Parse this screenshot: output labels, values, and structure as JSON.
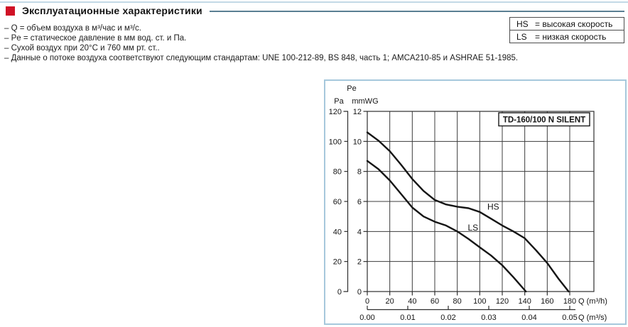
{
  "header": {
    "title": "Эксплуатационные характеристики",
    "accent_color": "#d01226",
    "rule_color": "#5a7f92"
  },
  "notes": [
    "– Q = объем воздуха в м³/час и м³/с.",
    "– Pe = статическое давление в мм вод. ст. и Па.",
    "– Сухой воздух при 20°C и 760 мм рт. ст..",
    "– Данные о потоке воздуха соответствуют следующим стандартам: UNE 100-212-89, BS 848, часть 1; AMCA210-85 и ASHRAE 51-1985."
  ],
  "legend": {
    "rows": [
      {
        "code": "HS",
        "text": "= высокая скорость"
      },
      {
        "code": "LS",
        "text": "= низкая скорость"
      }
    ]
  },
  "chart_data": {
    "type": "line",
    "title": "TD-160/100 N SILENT",
    "x_axis_primary": {
      "title": "Q (m³/h)",
      "ticks": [
        0,
        20,
        40,
        60,
        80,
        100,
        120,
        140,
        160,
        180
      ],
      "range": [
        0,
        201
      ]
    },
    "x_axis_secondary": {
      "title": "Q (m³/s)",
      "ticks": [
        "0.00",
        "0.01",
        "0.02",
        "0.03",
        "0.04",
        "0.05"
      ]
    },
    "y_axis_pa": {
      "title": "Pa",
      "ticks": [
        120,
        100,
        80,
        60,
        40,
        20,
        0
      ]
    },
    "y_axis_mmwg": {
      "title": "mmWG",
      "super_title": "Pe",
      "ticks": [
        12,
        10,
        8,
        6,
        4,
        2,
        0
      ],
      "range": [
        0,
        12
      ]
    },
    "grid": true,
    "series": [
      {
        "name": "HS",
        "points": [
          [
            0,
            10.6
          ],
          [
            10,
            10.05
          ],
          [
            20,
            9.35
          ],
          [
            30,
            8.45
          ],
          [
            40,
            7.5
          ],
          [
            50,
            6.7
          ],
          [
            60,
            6.1
          ],
          [
            70,
            5.8
          ],
          [
            80,
            5.65
          ],
          [
            90,
            5.55
          ],
          [
            100,
            5.3
          ],
          [
            110,
            4.85
          ],
          [
            120,
            4.4
          ],
          [
            130,
            4.0
          ],
          [
            140,
            3.55
          ],
          [
            150,
            2.75
          ],
          [
            160,
            1.9
          ],
          [
            170,
            0.85
          ],
          [
            179,
            0
          ]
        ],
        "label_at": [
          112,
          5.45
        ]
      },
      {
        "name": "LS",
        "points": [
          [
            0,
            8.7
          ],
          [
            10,
            8.15
          ],
          [
            20,
            7.4
          ],
          [
            30,
            6.5
          ],
          [
            40,
            5.6
          ],
          [
            50,
            5.0
          ],
          [
            60,
            4.65
          ],
          [
            70,
            4.4
          ],
          [
            80,
            4.0
          ],
          [
            90,
            3.5
          ],
          [
            100,
            2.95
          ],
          [
            110,
            2.4
          ],
          [
            120,
            1.75
          ],
          [
            130,
            0.95
          ],
          [
            141,
            0
          ]
        ],
        "label_at": [
          94,
          4.06
        ]
      }
    ],
    "colors": {
      "curve": "#151515",
      "grid": "#3c3c3c",
      "frame": "#2e2e2e",
      "box_border": "#a6c8dc"
    }
  }
}
